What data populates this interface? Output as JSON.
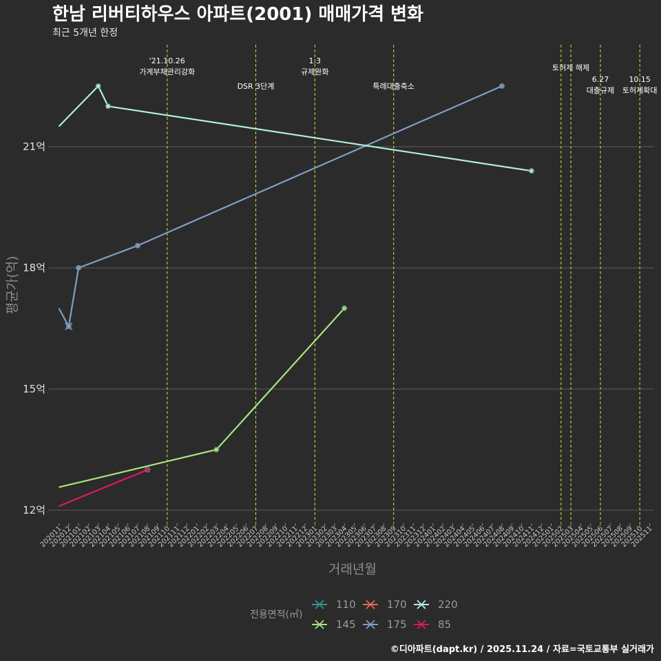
{
  "chart_data": {
    "type": "line",
    "title": "한남 리버티하우스 아파트(2001) 매매가격 변화",
    "subtitle": "최근 5개년 한정",
    "xlabel": "거래년월",
    "ylabel": "평균가(억)",
    "caption": "©디아파트(dapt.kr) / 2025.11.24 / 자료=국토교통부 실거래가",
    "ylim": [
      11.7,
      22.6
    ],
    "y_ticks": [
      12,
      15,
      18,
      21
    ],
    "y_tick_labels": [
      "12억",
      "15억",
      "18억",
      "21억"
    ],
    "categories": [
      "202011",
      "202012",
      "202101",
      "202102",
      "202103",
      "202104",
      "202105",
      "202106",
      "202107",
      "202108",
      "202109",
      "202110",
      "202111",
      "202112",
      "202201",
      "202202",
      "202203",
      "202204",
      "202205",
      "202206",
      "202207",
      "202208",
      "202209",
      "202210",
      "202211",
      "202212",
      "202301",
      "202302",
      "202303",
      "202304",
      "202305",
      "202306",
      "202307",
      "202308",
      "202309",
      "202310",
      "202311",
      "202312",
      "202401",
      "202402",
      "202403",
      "202404",
      "202405",
      "202406",
      "202407",
      "202408",
      "202409",
      "202410",
      "202411",
      "202412",
      "202501",
      "202502",
      "202503",
      "202504",
      "202505",
      "202506",
      "202507",
      "202508",
      "202509",
      "202510",
      "202511"
    ],
    "events": [
      {
        "index": 11,
        "lines": [
          "'21.10.26",
          "가계부채관리강화"
        ],
        "row": "top"
      },
      {
        "index": 20,
        "lines": [
          "DSR 3단계"
        ],
        "row": "bottom"
      },
      {
        "index": 26,
        "lines": [
          "1.3",
          "규제완화"
        ],
        "row": "top"
      },
      {
        "index": 34,
        "lines": [
          "특례대출축소"
        ],
        "row": "bottom"
      },
      {
        "index": 51,
        "lines": [],
        "row": "none"
      },
      {
        "index": 52,
        "lines": [
          "토허제 해제"
        ],
        "row": "mid"
      },
      {
        "index": 55,
        "lines": [
          "6.27",
          "대출규제"
        ],
        "row": "right"
      },
      {
        "index": 59,
        "lines": [
          "10.15",
          "토허제확대"
        ],
        "row": "right"
      }
    ],
    "series": [
      {
        "name": "110",
        "color": "#2a9d8f",
        "points": []
      },
      {
        "name": "145",
        "color": "#a6e67f",
        "points": [
          [
            0,
            12.57
          ],
          [
            16,
            13.5
          ],
          [
            29,
            17.0
          ]
        ]
      },
      {
        "name": "170",
        "color": "#e8685a",
        "points": []
      },
      {
        "name": "175",
        "color": "#7f9fc6",
        "points": [
          [
            0,
            17.0
          ],
          [
            1,
            16.55
          ],
          [
            2,
            18.0
          ],
          [
            8,
            18.55
          ],
          [
            45,
            22.5
          ]
        ]
      },
      {
        "name": "220",
        "color": "#b0eee6",
        "points": [
          [
            0,
            21.5
          ],
          [
            4,
            22.5
          ],
          [
            5,
            22.0
          ],
          [
            48,
            20.4
          ]
        ]
      },
      {
        "name": "85",
        "color": "#e0195e",
        "points": [
          [
            0,
            12.1
          ],
          [
            9,
            13.0
          ]
        ]
      }
    ],
    "legend": {
      "title": "전용면적(㎡)",
      "placement": "bottom",
      "items": [
        "110",
        "170",
        "220",
        "145",
        "175",
        "85"
      ]
    }
  }
}
